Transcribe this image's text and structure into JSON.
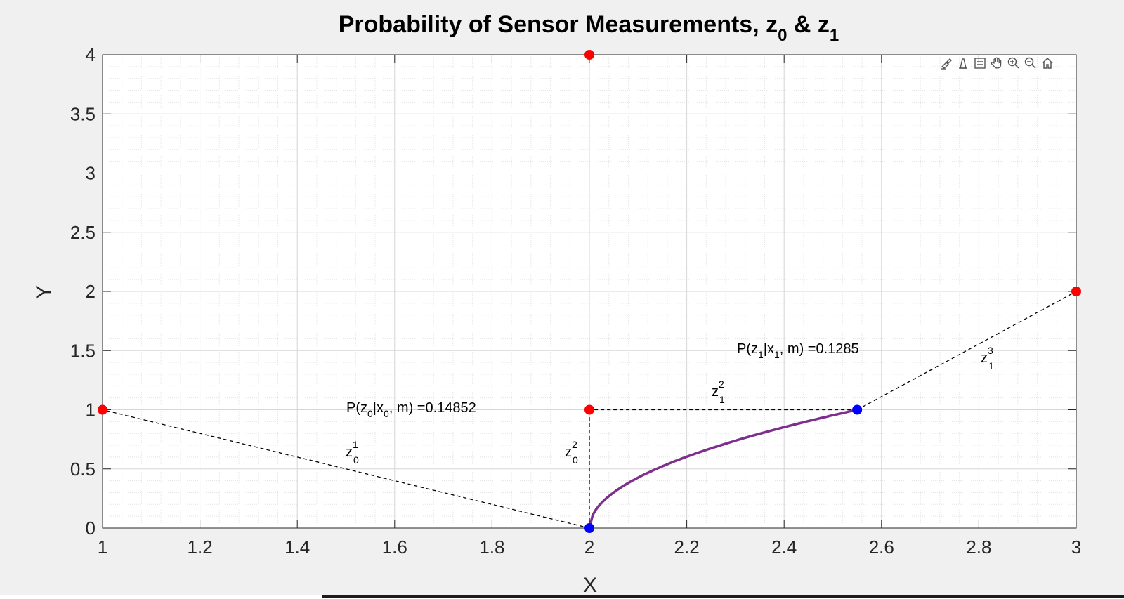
{
  "chart_data": {
    "type": "line",
    "title": {
      "main": "Probability of Sensor Measurements, z",
      "sub0": "0",
      "amp": " & z",
      "sub1": "1"
    },
    "xlabel": "X",
    "ylabel": "Y",
    "xlim": [
      1,
      3
    ],
    "ylim": [
      0,
      4
    ],
    "xticks": [
      "1",
      "1.2",
      "1.4",
      "1.6",
      "1.8",
      "2",
      "2.2",
      "2.4",
      "2.6",
      "2.8",
      "3"
    ],
    "yticks": [
      "0",
      "0.5",
      "1",
      "1.5",
      "2",
      "2.5",
      "3",
      "3.5",
      "4"
    ],
    "grid": true,
    "minor_grid": true,
    "landmarks": {
      "color": "#ff0000",
      "points": [
        [
          1,
          1
        ],
        [
          2,
          1
        ],
        [
          2,
          4
        ],
        [
          3,
          2
        ]
      ]
    },
    "robot_poses": {
      "color": "#0000ff",
      "points": [
        [
          2,
          0
        ],
        [
          2.55,
          1.0
        ]
      ]
    },
    "trajectory": {
      "color": "#7e2f8e",
      "x_start": 2.0,
      "x_end": 2.55,
      "y_start": 0,
      "y_end": 1.0,
      "shape": "sqrt"
    },
    "measurements": [
      {
        "from": [
          2,
          0
        ],
        "to": [
          1,
          1
        ]
      },
      {
        "from": [
          2,
          0
        ],
        "to": [
          2,
          1
        ]
      },
      {
        "from": [
          2.55,
          1.0
        ],
        "to": [
          2,
          1
        ]
      },
      {
        "from": [
          2.55,
          1.0
        ],
        "to": [
          3,
          2
        ]
      }
    ],
    "annotations": {
      "p0": {
        "pre": "P(z",
        "s1": "0",
        "mid1": "|x",
        "s2": "0",
        "post": ", m) =0.14852"
      },
      "p1": {
        "pre": "P(z",
        "s1": "1",
        "mid1": "|x",
        "s2": "1",
        "post": ", m) =0.1285"
      },
      "z01": {
        "base": "z",
        "sup": "1",
        "sub": "0"
      },
      "z02": {
        "base": "z",
        "sup": "2",
        "sub": "0"
      },
      "z12": {
        "base": "z",
        "sup": "2",
        "sub": "1"
      },
      "z13": {
        "base": "z",
        "sup": "3",
        "sub": "1"
      }
    }
  },
  "toolbar": {
    "icons": [
      "brush-icon",
      "data-tips-icon",
      "legend-icon",
      "pan-icon",
      "zoom-in-icon",
      "zoom-out-icon",
      "home-icon"
    ]
  }
}
